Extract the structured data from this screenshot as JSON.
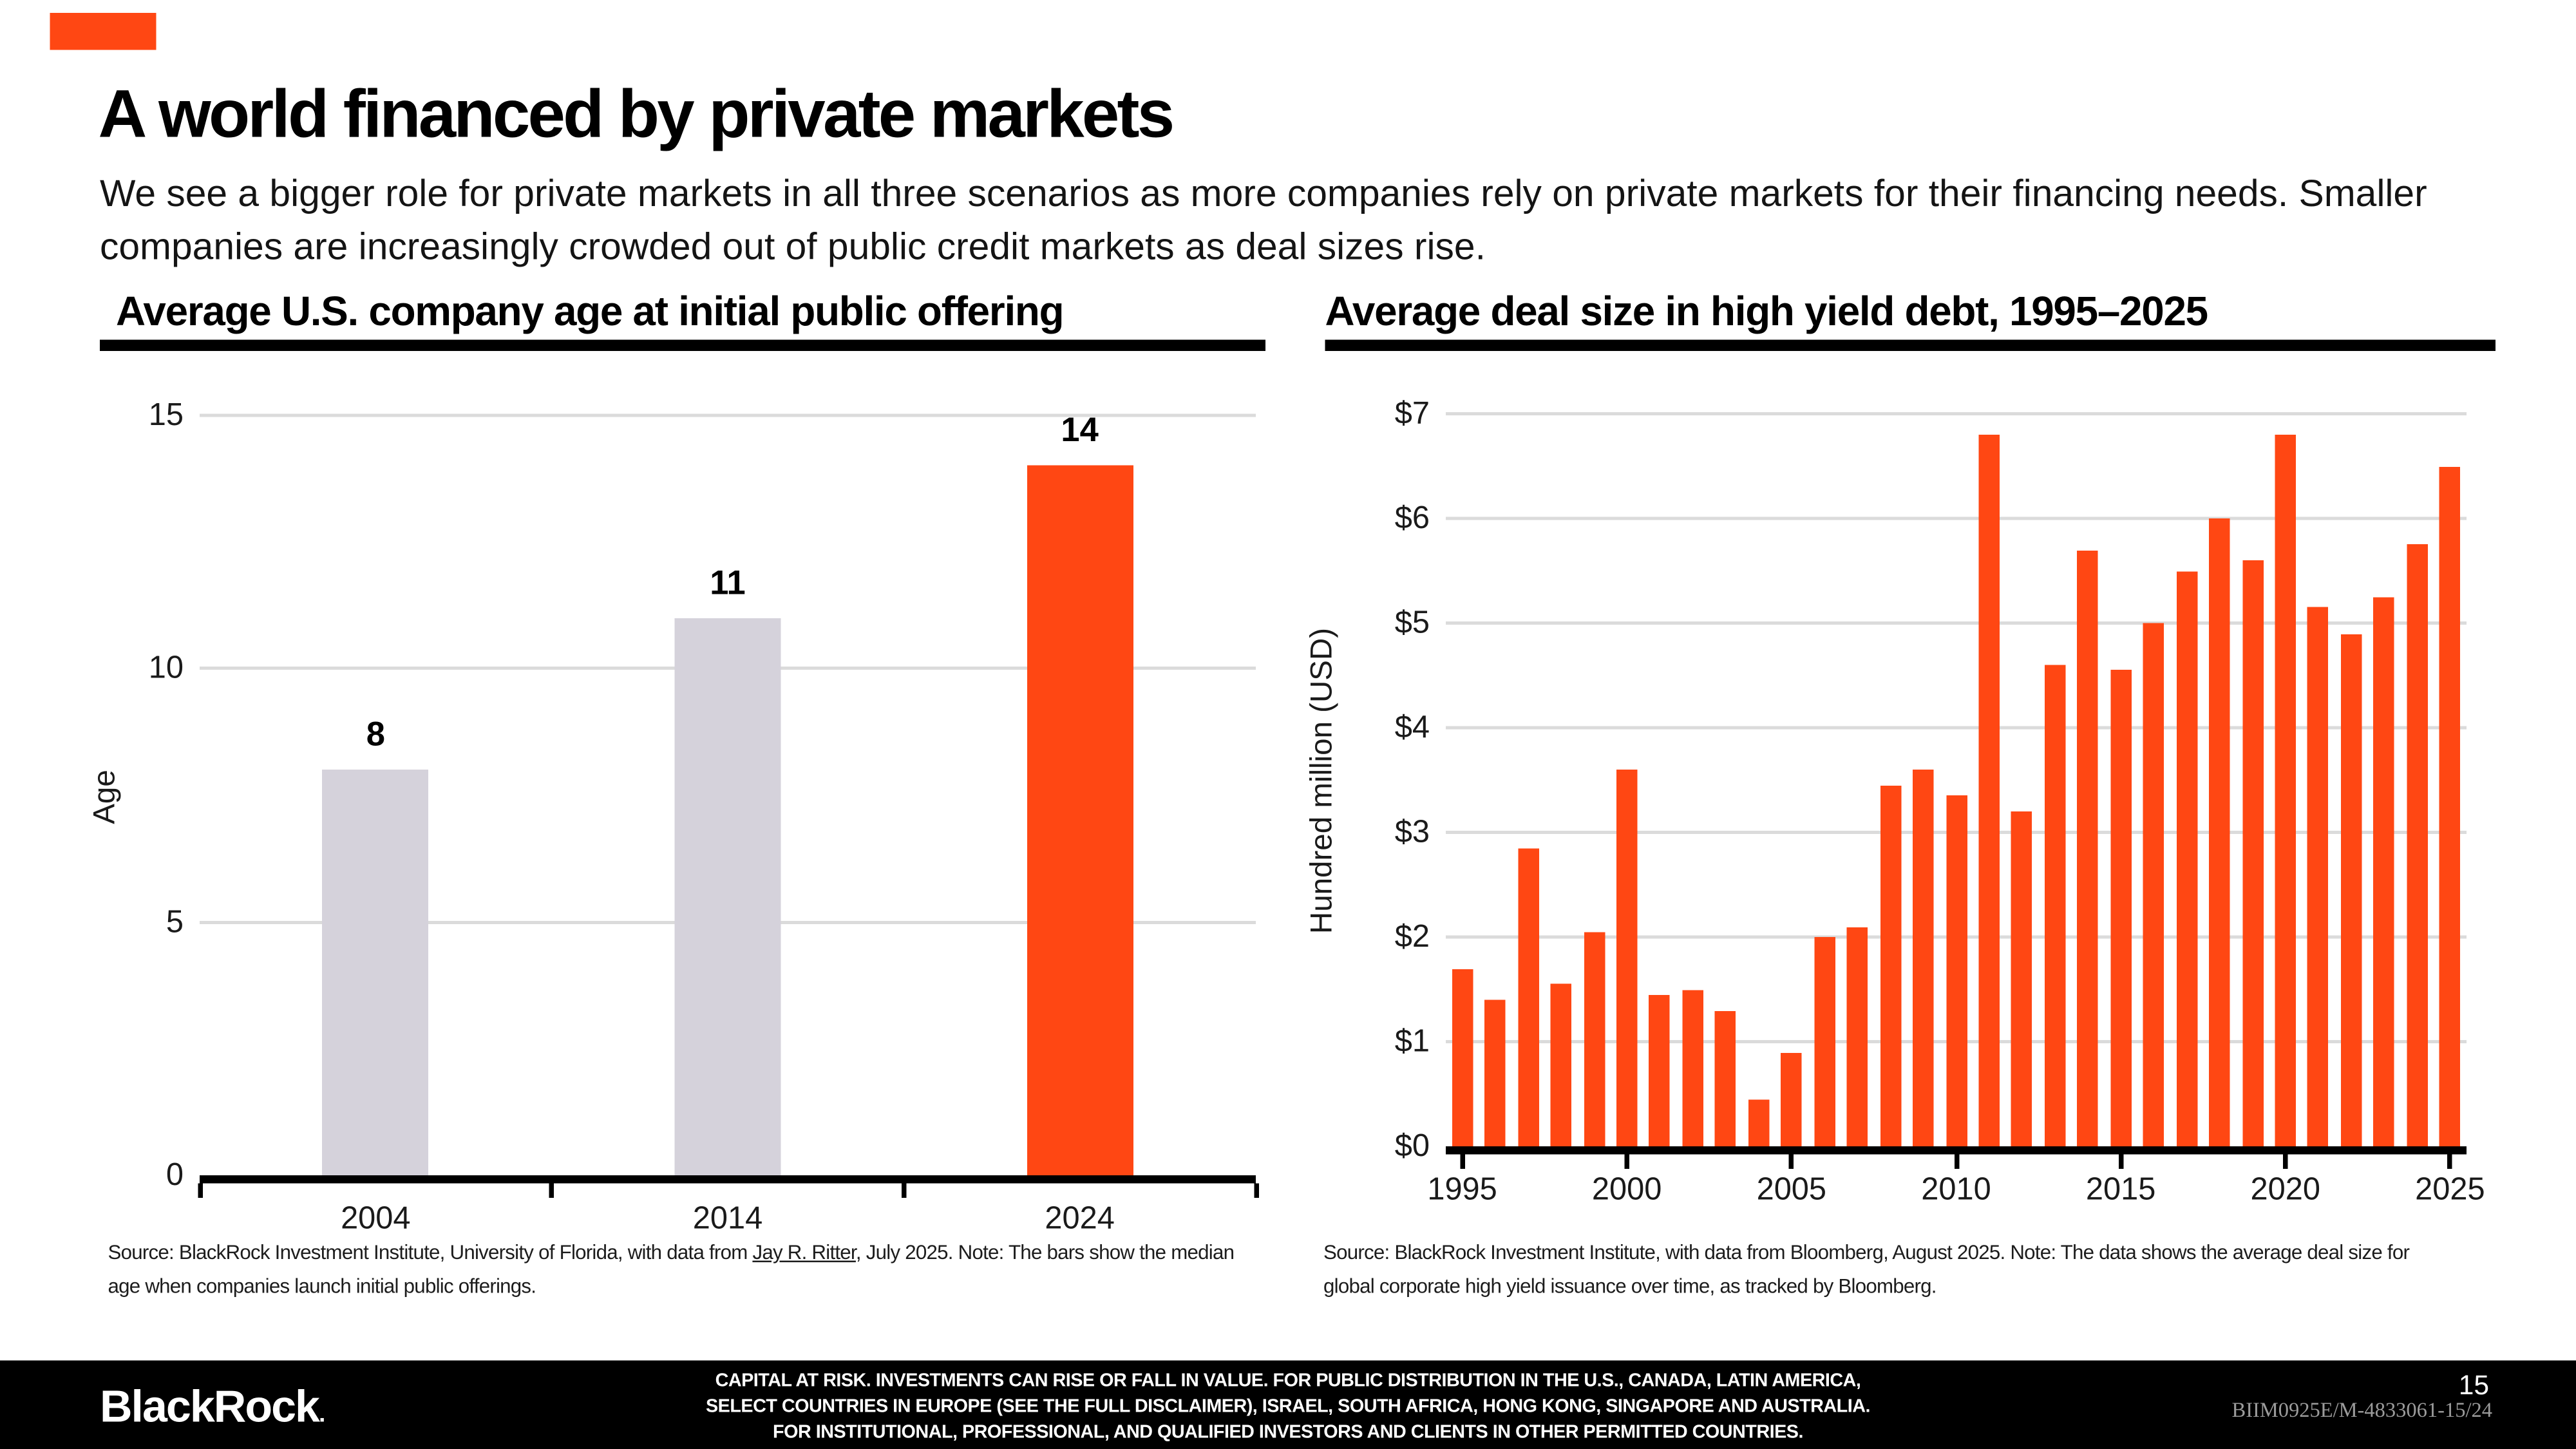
{
  "slide": {
    "title": "A world financed by private markets",
    "subtitle": "We see a bigger role for private markets in all three scenarios as more companies rely on private markets for their financing needs. Smaller companies are increasingly crowded out of public credit markets as deal sizes rise.",
    "accent_color": "#FF4713",
    "page_number": "15"
  },
  "chart_data": [
    {
      "id": "ipo-age",
      "type": "bar",
      "title": "Average U.S. company age at initial public offering",
      "xlabel": "",
      "ylabel": "Age",
      "ylim": [
        0,
        15
      ],
      "yticks": [
        0,
        5,
        10,
        15
      ],
      "grid": true,
      "legend": "none",
      "categories": [
        "2004",
        "2014",
        "2024"
      ],
      "values": [
        8,
        11,
        14
      ],
      "value_labels": [
        "8",
        "11",
        "14"
      ],
      "bar_colors": [
        "#D5D2DB",
        "#D5D2DB",
        "#FF4713"
      ],
      "source": {
        "prefix": "Source: BlackRock Investment Institute, University of Florida, with data from ",
        "link": "Jay R. Ritter",
        "suffix": ", July 2025. Note: The bars show the median age when companies launch initial public offerings."
      }
    },
    {
      "id": "hy-deal-size",
      "type": "bar",
      "title": "Average deal size in high yield debt, 1995–2025",
      "xlabel": "",
      "ylabel": "Hundred million (USD)",
      "ylim": [
        0,
        7
      ],
      "yticks": [
        "$0",
        "$1",
        "$2",
        "$3",
        "$4",
        "$5",
        "$6",
        "$7"
      ],
      "grid": true,
      "legend": "none",
      "categories": [
        "1995",
        "1996",
        "1997",
        "1998",
        "1999",
        "2000",
        "2001",
        "2002",
        "2003",
        "2004",
        "2005",
        "2006",
        "2007",
        "2008",
        "2009",
        "2010",
        "2011",
        "2012",
        "2013",
        "2014",
        "2015",
        "2016",
        "2017",
        "2018",
        "2019",
        "2020",
        "2021",
        "2022",
        "2023",
        "2024",
        "2025"
      ],
      "values": [
        1.7,
        1.4,
        2.85,
        1.55,
        2.05,
        3.6,
        1.45,
        1.5,
        1.3,
        0.45,
        0.9,
        2.0,
        2.1,
        3.45,
        3.6,
        3.35,
        6.8,
        3.2,
        4.6,
        5.7,
        4.55,
        5.0,
        5.5,
        6.0,
        5.6,
        6.8,
        5.15,
        4.9,
        5.25,
        5.75,
        6.5
      ],
      "xtick_labels": [
        "1995",
        "2000",
        "2005",
        "2010",
        "2015",
        "2020",
        "2025"
      ],
      "bar_color": "#FF4713",
      "source": {
        "text": "Source: BlackRock Investment Institute, with data from Bloomberg, August 2025. Note: The data shows the average deal size for global corporate high yield issuance over time, as tracked by Bloomberg."
      }
    }
  ],
  "footer": {
    "brand": "BlackRock",
    "brand_mark": ".",
    "disclaimer_lines": [
      "CAPITAL AT RISK. INVESTMENTS CAN RISE OR FALL IN VALUE. FOR PUBLIC DISTRIBUTION IN THE U.S., CANADA, LATIN AMERICA,",
      "SELECT COUNTRIES IN EUROPE (SEE THE FULL DISCLAIMER), ISRAEL, SOUTH AFRICA, HONG KONG, SINGAPORE AND AUSTRALIA.",
      "FOR INSTITUTIONAL, PROFESSIONAL, AND QUALIFIED INVESTORS AND CLIENTS IN OTHER PERMITTED COUNTRIES."
    ],
    "document_id": "BIIM0925E/M-4833061-15/24"
  }
}
